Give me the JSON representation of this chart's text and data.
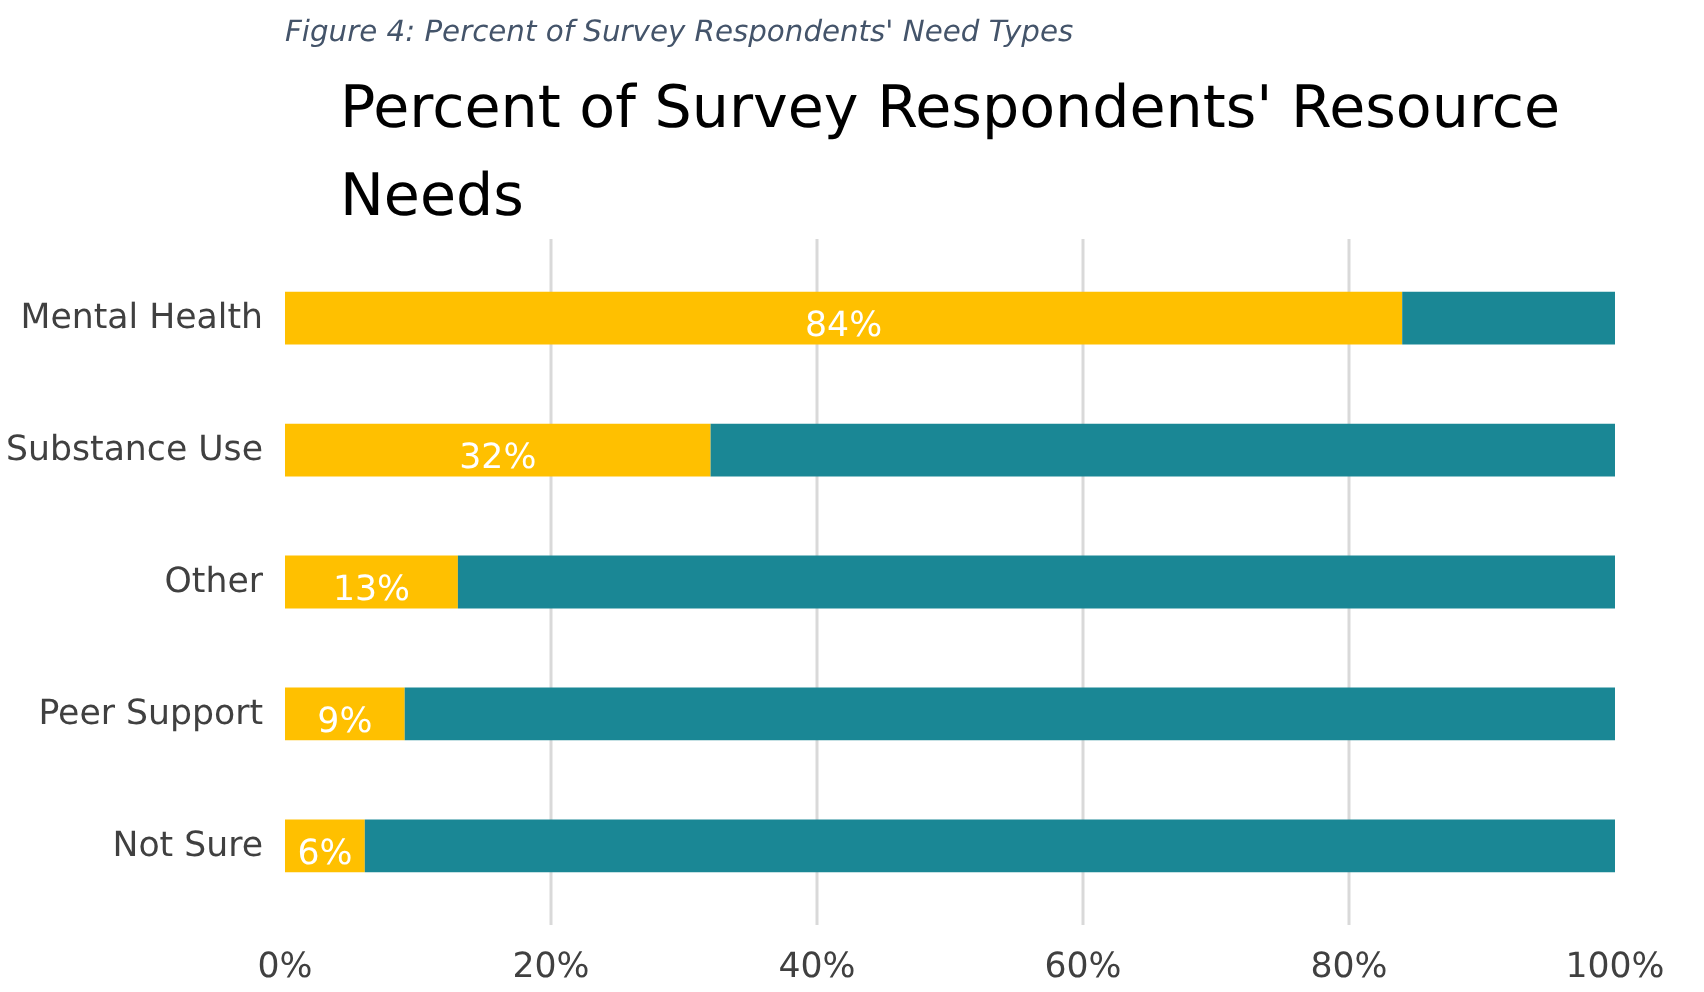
{
  "chart_data": {
    "type": "bar",
    "orientation": "horizontal",
    "stacked": true,
    "title": "Percent of Survey Respondents' Resource Needs",
    "annotations": [
      "Figure 4: Percent of Survey Respondents' Need Types"
    ],
    "categories": [
      "Mental Health",
      "Substance Use",
      "Other",
      "Peer Support",
      "Not Sure"
    ],
    "series": [
      {
        "color": "#ffc000",
        "values": [
          84,
          32,
          13,
          9,
          6
        ],
        "value_labels": [
          "84%",
          "32%",
          "13%",
          "9%",
          "6%"
        ]
      },
      {
        "color": "#1a8795",
        "values": [
          16,
          68,
          87,
          91,
          94
        ]
      }
    ],
    "xlim": [
      0,
      100
    ],
    "xticks": [
      {
        "value": 0,
        "label": "0%"
      },
      {
        "value": 20,
        "label": "20%"
      },
      {
        "value": 40,
        "label": "40%"
      },
      {
        "value": 60,
        "label": "60%"
      },
      {
        "value": 80,
        "label": "80%"
      },
      {
        "value": 100,
        "label": "100%"
      }
    ],
    "grid": "x"
  }
}
